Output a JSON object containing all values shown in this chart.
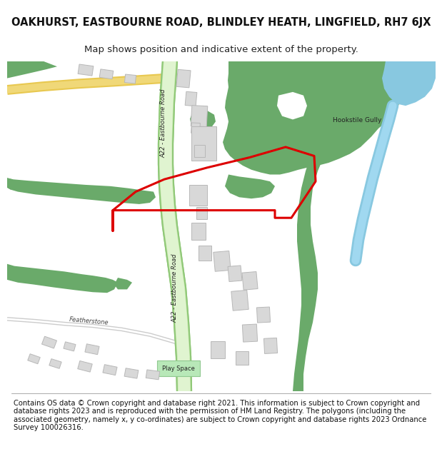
{
  "title": "OAKHURST, EASTBOURNE ROAD, BLINDLEY HEATH, LINGFIELD, RH7 6JX",
  "subtitle": "Map shows position and indicative extent of the property.",
  "footer": "Contains OS data © Crown copyright and database right 2021. This information is subject to Crown copyright and database rights 2023 and is reproduced with the permission of HM Land Registry. The polygons (including the associated geometry, namely x, y co-ordinates) are subject to Crown copyright and database rights 2023 Ordnance Survey 100026316.",
  "bg_color": "#ffffff",
  "map_bg": "#ffffff",
  "road_green": "#c8e8b8",
  "road_green_border": "#a8d898",
  "road_green_light": "#e0f2d8",
  "green_color": "#6aaa6a",
  "water_color": "#88c8e0",
  "building_color": "#d8d8d8",
  "building_edge": "#b8b8b8",
  "red_boundary_color": "#dd0000",
  "play_space_color": "#c8e8c8",
  "orange_road_color": "#f0d878",
  "orange_road_border": "#e8c850"
}
